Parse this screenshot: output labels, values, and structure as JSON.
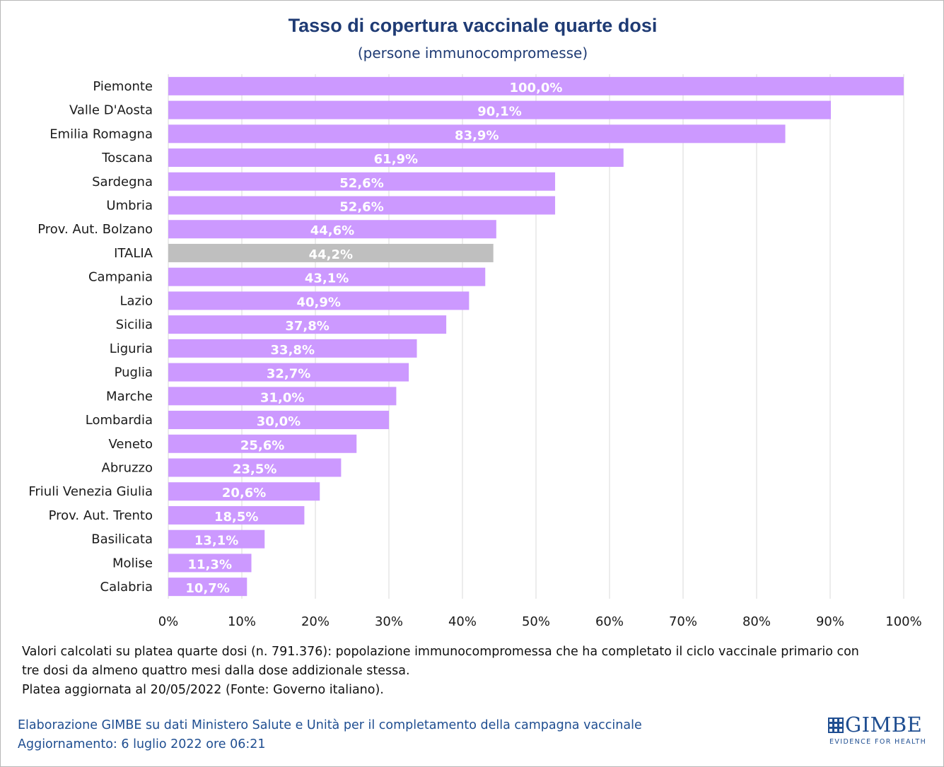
{
  "header": {
    "title": "Tasso di copertura vaccinale quarte dosi",
    "subtitle": "(persone immunocompromesse)"
  },
  "colors": {
    "bar": "#cc99ff",
    "highlight_bar": "#bfbfbf",
    "title": "#1f3b74",
    "footer": "#1f4e91",
    "grid": "#d9d9d9"
  },
  "chart_data": {
    "type": "bar",
    "orientation": "horizontal",
    "categories": [
      "Piemonte",
      "Valle D'Aosta",
      "Emilia Romagna",
      "Toscana",
      "Sardegna",
      "Umbria",
      "Prov. Aut. Bolzano",
      "ITALIA",
      "Campania",
      "Lazio",
      "Sicilia",
      "Liguria",
      "Puglia",
      "Marche",
      "Lombardia",
      "Veneto",
      "Abruzzo",
      "Friuli Venezia Giulia",
      "Prov. Aut. Trento",
      "Basilicata",
      "Molise",
      "Calabria"
    ],
    "values": [
      100.0,
      90.1,
      83.9,
      61.9,
      52.6,
      52.6,
      44.6,
      44.2,
      43.1,
      40.9,
      37.8,
      33.8,
      32.7,
      31.0,
      30.0,
      25.6,
      23.5,
      20.6,
      18.5,
      13.1,
      11.3,
      10.7
    ],
    "value_labels": [
      "100,0%",
      "90,1%",
      "83,9%",
      "61,9%",
      "52,6%",
      "52,6%",
      "44,6%",
      "44,2%",
      "43,1%",
      "40,9%",
      "37,8%",
      "33,8%",
      "32,7%",
      "31,0%",
      "30,0%",
      "25,6%",
      "23,5%",
      "20,6%",
      "18,5%",
      "13,1%",
      "11,3%",
      "10,7%"
    ],
    "highlight": "ITALIA",
    "xlim": [
      0,
      100
    ],
    "xticks": [
      "0%",
      "10%",
      "20%",
      "30%",
      "40%",
      "50%",
      "60%",
      "70%",
      "80%",
      "90%",
      "100%"
    ],
    "grid": true,
    "title": "Tasso di copertura vaccinale quarte dosi",
    "subtitle": "(persone immunocompromesse)"
  },
  "notes": {
    "line1": "Valori calcolati su platea quarte dosi (n. 791.376): popolazione immunocompromessa che ha completato il ciclo vaccinale primario con",
    "line2": "tre dosi da almeno quattro mesi dalla dose addizionale stessa.",
    "line3": "Platea aggiornata al 20/05/2022 (Fonte: Governo italiano)."
  },
  "footer": {
    "source": "Elaborazione GIMBE su dati Ministero Salute e Unità per il completamento della campagna vaccinale",
    "updated": "Aggiornamento: 6 luglio 2022 ore 06:21"
  },
  "logo": {
    "name": "GIMBE",
    "tagline": "EVIDENCE FOR HEALTH"
  }
}
